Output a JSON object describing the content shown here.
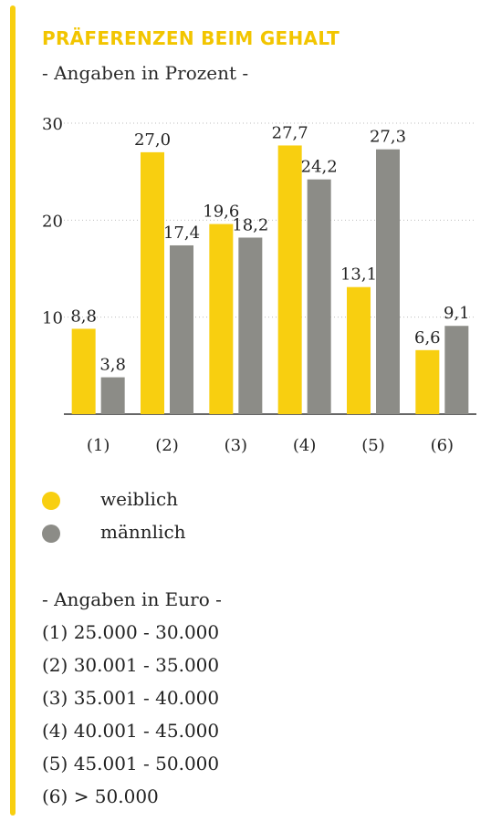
{
  "colors": {
    "accent": "#f8cf10",
    "weiblich": "#f8cf10",
    "maennlich": "#8c8c87"
  },
  "title": "PRÄFERENZEN BEIM GEHALT",
  "subtitle": "- Angaben in Prozent -",
  "chart_data": {
    "type": "bar",
    "categories": [
      "(1)",
      "(2)",
      "(3)",
      "(4)",
      "(5)",
      "(6)"
    ],
    "series": [
      {
        "name": "weiblich",
        "values": [
          8.8,
          27.0,
          19.6,
          27.7,
          13.1,
          6.6
        ],
        "labels": [
          "8,8",
          "27,0",
          "19,6",
          "27,7",
          "13,1",
          "6,6"
        ],
        "color": "#f8cf10"
      },
      {
        "name": "männlich",
        "values": [
          3.8,
          17.4,
          18.2,
          24.2,
          27.3,
          9.1
        ],
        "labels": [
          "3,8",
          "17,4",
          "18,2",
          "24,2",
          "27,3",
          "9,1"
        ],
        "color": "#8c8c87"
      }
    ],
    "yticks": [
      "10",
      "20",
      "30"
    ],
    "ylim": [
      0,
      30
    ],
    "grid": "dotted-horizontal"
  },
  "legend": [
    {
      "label": "weiblich",
      "color": "#f8cf10"
    },
    {
      "label": "männlich",
      "color": "#8c8c87"
    }
  ],
  "euro": {
    "title": "- Angaben in Euro -",
    "items": [
      "(1) 25.000 - 30.000",
      "(2) 30.001 - 35.000",
      "(3) 35.001 - 40.000",
      "(4) 40.001 - 45.000",
      "(5) 45.001 - 50.000",
      "(6) > 50.000"
    ]
  }
}
